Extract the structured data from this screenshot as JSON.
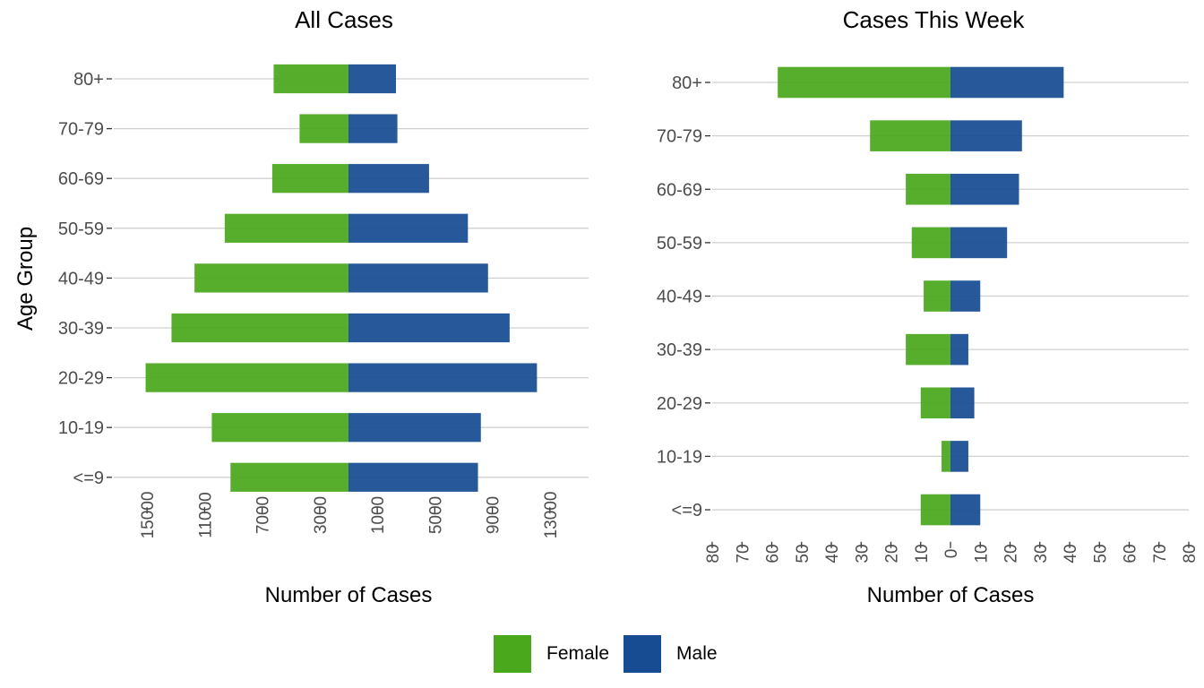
{
  "colors": {
    "female": "#4aa81c",
    "male": "#174c92",
    "grid": "#d0d0d0"
  },
  "chart_data": [
    {
      "type": "bar",
      "orientation": "horizontal-diverging",
      "title": "All Cases",
      "xlabel": "Number of Cases",
      "ylabel": "Age Group",
      "categories": [
        "80+",
        "70-79",
        "60-69",
        "50-59",
        "40-49",
        "30-39",
        "20-29",
        "10-19",
        "<=9"
      ],
      "x_center_label": 1000,
      "xlim": [
        -16500,
        16500
      ],
      "xticks": [
        -14000,
        -10000,
        -6000,
        -2000,
        2000,
        6000,
        10000,
        14000
      ],
      "xtick_labels": [
        "15000",
        "11000",
        "7000",
        "3000",
        "1000",
        "5000",
        "9000",
        "13000"
      ],
      "series": [
        {
          "name": "Female",
          "values": [
            5200,
            3400,
            5300,
            8600,
            10700,
            12300,
            14100,
            9500,
            8200
          ]
        },
        {
          "name": "Male",
          "values": [
            3300,
            3400,
            5600,
            8300,
            9700,
            11200,
            13100,
            9200,
            9000
          ]
        }
      ]
    },
    {
      "type": "bar",
      "orientation": "horizontal-diverging",
      "title": "Cases This Week",
      "xlabel": "Number of Cases",
      "ylabel": "",
      "categories": [
        "80+",
        "70-79",
        "60-69",
        "50-59",
        "40-49",
        "30-39",
        "20-29",
        "10-19",
        "<=9"
      ],
      "xlim": [
        -80,
        80
      ],
      "xticks": [
        -80,
        -70,
        -60,
        -50,
        -40,
        -30,
        -20,
        -10,
        0,
        10,
        20,
        30,
        40,
        50,
        60,
        70,
        80
      ],
      "xtick_labels": [
        "80",
        "70",
        "60",
        "50",
        "40",
        "30",
        "20",
        "10",
        "0",
        "10",
        "20",
        "30",
        "40",
        "50",
        "60",
        "70",
        "80"
      ],
      "series": [
        {
          "name": "Female",
          "values": [
            58,
            27,
            15,
            13,
            9,
            15,
            10,
            3,
            10
          ]
        },
        {
          "name": "Male",
          "values": [
            38,
            24,
            23,
            19,
            10,
            6,
            8,
            6,
            10
          ]
        }
      ]
    }
  ],
  "legend": {
    "items": [
      "Female",
      "Male"
    ]
  }
}
